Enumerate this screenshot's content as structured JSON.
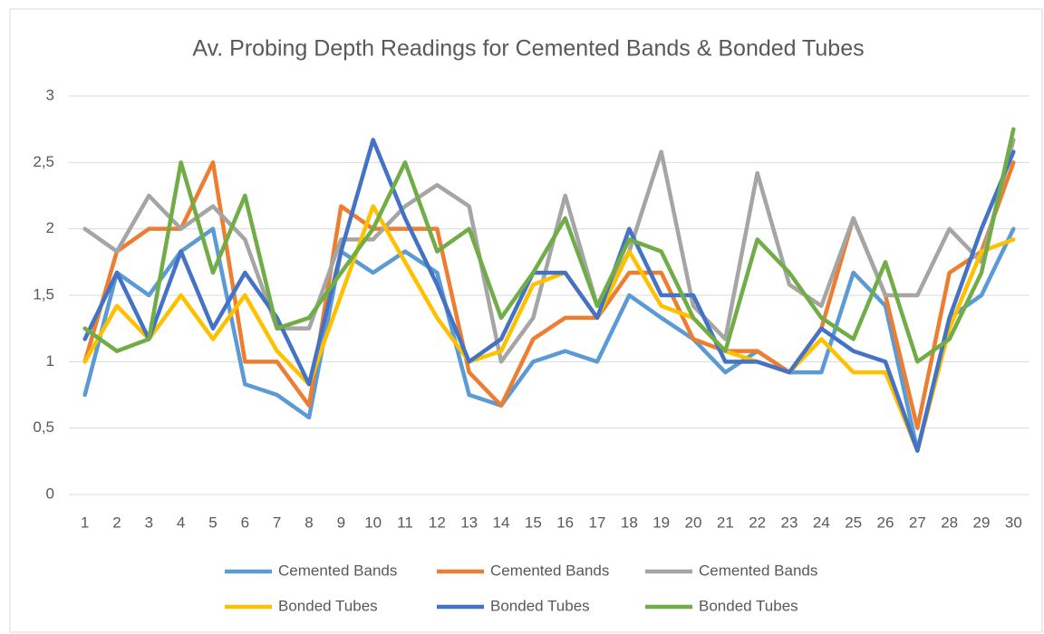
{
  "chart_data": {
    "type": "line",
    "title": "Av. Probing Depth Readings for Cemented Bands & Bonded Tubes",
    "categories": [
      "1",
      "2",
      "3",
      "4",
      "5",
      "6",
      "7",
      "8",
      "9",
      "10",
      "11",
      "12",
      "13",
      "14",
      "15",
      "16",
      "17",
      "18",
      "19",
      "20",
      "21",
      "22",
      "23",
      "24",
      "25",
      "26",
      "27",
      "28",
      "29",
      "30"
    ],
    "series": [
      {
        "name": "Cemented Bands",
        "color": "#5b9bd5",
        "values": [
          0.75,
          1.67,
          1.5,
          1.83,
          2.0,
          0.83,
          0.75,
          0.58,
          1.83,
          1.67,
          1.83,
          1.67,
          0.75,
          0.67,
          1.0,
          1.08,
          1.0,
          1.5,
          1.33,
          1.17,
          0.92,
          1.08,
          0.92,
          0.92,
          1.67,
          1.42,
          0.33,
          1.33,
          1.5,
          2.0
        ]
      },
      {
        "name": "Cemented Bands",
        "color": "#ed7d31",
        "values": [
          1.0,
          1.83,
          2.0,
          2.0,
          2.5,
          1.0,
          1.0,
          0.67,
          2.17,
          2.0,
          2.0,
          2.0,
          0.92,
          0.67,
          1.17,
          1.33,
          1.33,
          1.67,
          1.67,
          1.17,
          1.08,
          1.08,
          0.92,
          1.25,
          2.08,
          1.5,
          0.5,
          1.67,
          1.83,
          2.5
        ]
      },
      {
        "name": "Cemented Bands",
        "color": "#a5a5a5",
        "values": [
          2.0,
          1.83,
          2.25,
          2.0,
          2.17,
          1.92,
          1.25,
          1.25,
          1.92,
          1.92,
          2.17,
          2.33,
          2.17,
          1.0,
          1.33,
          2.25,
          1.42,
          1.83,
          2.58,
          1.42,
          1.17,
          2.42,
          1.58,
          1.42,
          2.08,
          1.5,
          1.5,
          2.0,
          1.75,
          2.67
        ]
      },
      {
        "name": "Bonded Tubes",
        "color": "#ffc000",
        "values": [
          1.0,
          1.42,
          1.17,
          1.5,
          1.17,
          1.5,
          1.08,
          0.83,
          1.5,
          2.17,
          1.75,
          1.33,
          1.0,
          1.08,
          1.58,
          1.67,
          1.33,
          1.83,
          1.42,
          1.33,
          1.08,
          1.0,
          0.92,
          1.17,
          0.92,
          0.92,
          0.33,
          1.25,
          1.83,
          1.92
        ]
      },
      {
        "name": "Bonded Tubes",
        "color": "#4472c4",
        "values": [
          1.17,
          1.67,
          1.17,
          1.83,
          1.25,
          1.67,
          1.33,
          0.83,
          1.83,
          2.67,
          2.08,
          1.58,
          1.0,
          1.17,
          1.67,
          1.67,
          1.33,
          2.0,
          1.5,
          1.5,
          1.0,
          1.0,
          0.92,
          1.25,
          1.08,
          1.0,
          0.33,
          1.33,
          2.0,
          2.58
        ]
      },
      {
        "name": "Bonded Tubes",
        "color": "#70ad47",
        "values": [
          1.25,
          1.08,
          1.17,
          2.5,
          1.67,
          2.25,
          1.25,
          1.33,
          1.67,
          2.0,
          2.5,
          1.83,
          2.0,
          1.33,
          1.67,
          2.08,
          1.42,
          1.92,
          1.83,
          1.33,
          1.08,
          1.92,
          1.67,
          1.33,
          1.17,
          1.75,
          1.0,
          1.17,
          1.67,
          2.75
        ]
      }
    ],
    "ylim": [
      0,
      3
    ],
    "yticks": [
      0,
      {
        "value": 0.5,
        "label": "0,5"
      },
      1,
      {
        "value": 1.5,
        "label": "1,5"
      },
      2,
      {
        "value": 2.5,
        "label": "2,5"
      },
      3
    ],
    "grid": true,
    "legend": "bottom"
  }
}
